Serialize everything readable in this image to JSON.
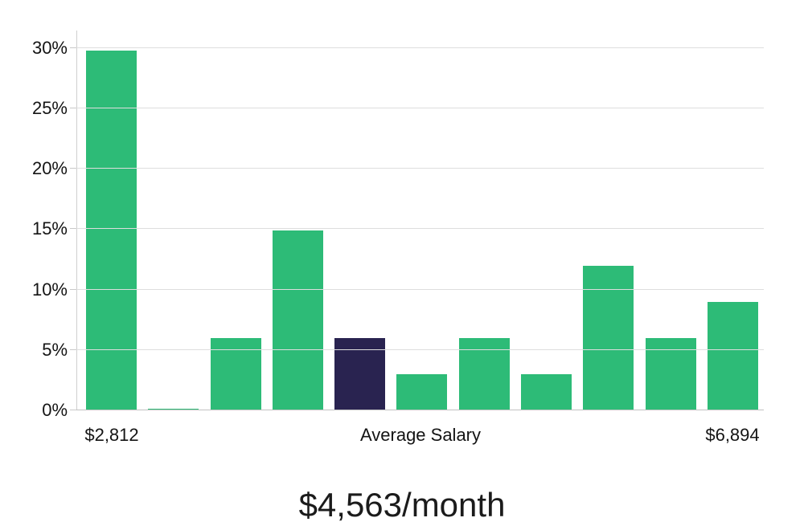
{
  "chart_data": {
    "type": "bar",
    "title": "$4,563/month",
    "subtitle": "",
    "series_name": "salary-distribution",
    "values": [
      29.8,
      0.1,
      6.0,
      14.9,
      6.0,
      3.0,
      6.0,
      3.0,
      12.0,
      6.0,
      9.0
    ],
    "highlight_index": 4,
    "ylim": [
      0,
      30
    ],
    "grid": true,
    "legend_position": "none",
    "y_ticks": [
      {
        "value": 0,
        "label": "0%"
      },
      {
        "value": 5,
        "label": "5%"
      },
      {
        "value": 10,
        "label": "10%"
      },
      {
        "value": 15,
        "label": "15%"
      },
      {
        "value": 20,
        "label": "20%"
      },
      {
        "value": 25,
        "label": "25%"
      },
      {
        "value": 30,
        "label": "30%"
      }
    ],
    "x_axis_labels": {
      "left": "$2,812",
      "center": "Average Salary",
      "right": "$6,894"
    },
    "colors": {
      "bar": "#2dbb77",
      "bar_highlight": "#292350",
      "gridline": "#dedede",
      "zero_line": "#c2c2c2",
      "axis_line": "#cfcfcf",
      "label_text": "#141414",
      "title_text": "#1b1b1b",
      "background": "#ffffff"
    }
  }
}
